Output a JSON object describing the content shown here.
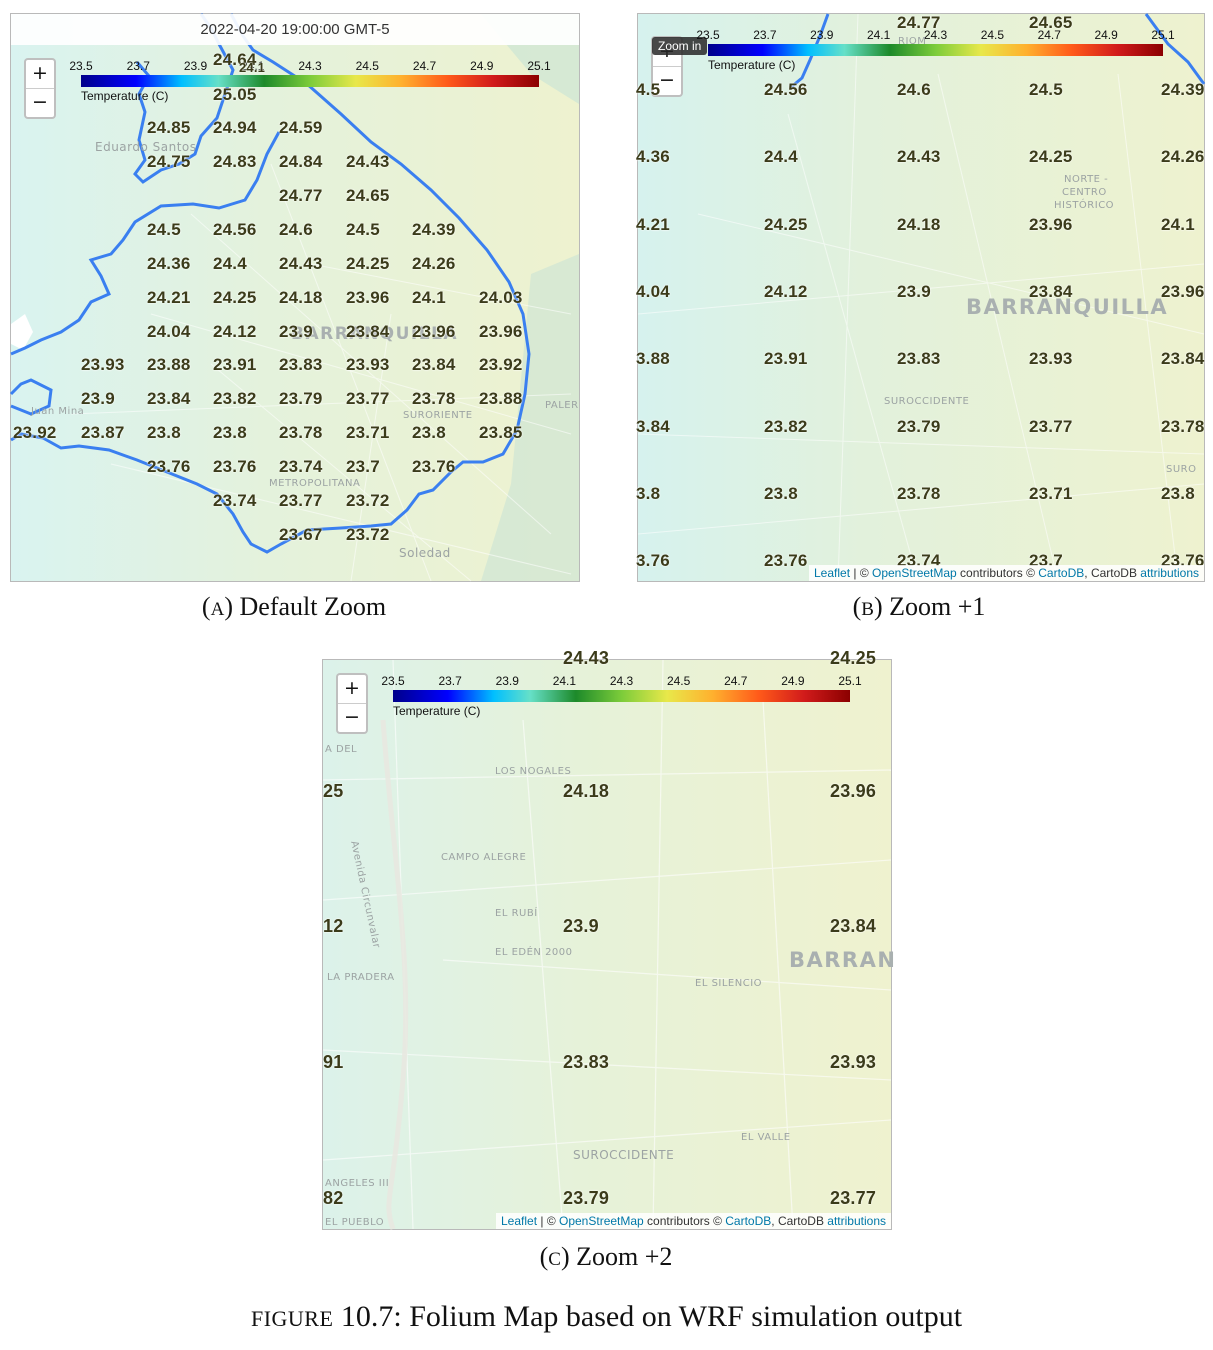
{
  "colors": {
    "boundary": "#3a7ff0",
    "label_text": "#3b3b1a",
    "map_base": "#e4f4ea",
    "attribution_link": "#0078a8"
  },
  "colorbar": {
    "ticks": [
      "23.5",
      "23.7",
      "23.9",
      "24.1",
      "24.3",
      "24.5",
      "24.7",
      "24.9",
      "25.1"
    ],
    "title": "Temperature (C)",
    "colors": [
      "#00008b",
      "#0000ff",
      "#00bfff",
      "#1d8a2a",
      "#7ccc3a",
      "#e8e84a",
      "#ffb02e",
      "#ff5a1a",
      "#8b0000"
    ]
  },
  "controls": {
    "zoom_in": "+",
    "zoom_out": "−",
    "zoom_in_tooltip": "Zoom in"
  },
  "attribution": {
    "leaflet": "Leaflet",
    "sep": " | © ",
    "osm": "OpenStreetMap",
    "contributors": " contributors © ",
    "cartodb": "CartoDB",
    "comma": ", CartoDB ",
    "attributions": "attributions"
  },
  "panel_a": {
    "timestamp": "2022-04-20 19:00:00 GMT-5",
    "caption_letter": "A",
    "caption_text": "Default Zoom",
    "places": [
      "Eduardo Santos",
      "Juan Mina",
      "METROPOLITANA",
      "SURORIENTE",
      "BARRANQUILLA",
      "PALER",
      "Soledad"
    ],
    "rows": [
      [
        "24.64",
        "24.1"
      ],
      [
        "25.05"
      ],
      [
        "24.85",
        "24.94",
        "24.59"
      ],
      [
        "24.75",
        "24.83",
        "24.84",
        "24.43"
      ],
      [
        "24.77",
        "24.65"
      ],
      [
        "24.5",
        "24.56",
        "24.6",
        "24.5",
        "24.39"
      ],
      [
        "24.36",
        "24.4",
        "24.43",
        "24.25",
        "24.26"
      ],
      [
        "24.21",
        "24.25",
        "24.18",
        "23.96",
        "24.1",
        "24.03"
      ],
      [
        "24.04",
        "24.12",
        "23.9",
        "23.84",
        "23.96",
        "23.96"
      ],
      [
        "23.93",
        "23.88",
        "23.91",
        "23.83",
        "23.93",
        "23.84",
        "23.92"
      ],
      [
        "23.9",
        "23.84",
        "23.82",
        "23.79",
        "23.77",
        "23.78",
        "23.88"
      ],
      [
        "23.92",
        "23.87",
        "23.8",
        "23.8",
        "23.78",
        "23.71",
        "23.8",
        "23.85"
      ],
      [
        "23.76",
        "23.76",
        "23.74",
        "23.7",
        "23.76"
      ],
      [
        "23.74",
        "23.77",
        "23.72"
      ],
      [
        "23.67",
        "23.72"
      ]
    ]
  },
  "panel_b": {
    "caption_letter": "B",
    "caption_text": "Zoom +1",
    "places": [
      "NORTE -",
      "CENTRO",
      "HISTÓRICO",
      "BARRANQUILLA",
      "SUROCCIDENTE",
      "SURO",
      "RIOM"
    ],
    "rows": [
      [
        "24.77",
        "24.65"
      ],
      [
        "4.5",
        "24.56",
        "24.6",
        "24.5",
        "24.39"
      ],
      [
        "4.36",
        "24.4",
        "24.43",
        "24.25",
        "24.26"
      ],
      [
        "4.21",
        "24.25",
        "24.18",
        "23.96",
        "24.1"
      ],
      [
        "4.04",
        "24.12",
        "23.9",
        "23.84",
        "23.96"
      ],
      [
        "3.88",
        "23.91",
        "23.83",
        "23.93",
        "23.84"
      ],
      [
        "3.84",
        "23.82",
        "23.79",
        "23.77",
        "23.78"
      ],
      [
        "3.8",
        "23.8",
        "23.78",
        "23.71",
        "23.8"
      ],
      [
        "3.76",
        "23.76",
        "23.74",
        "23.7",
        "23.76"
      ]
    ]
  },
  "panel_c": {
    "caption_letter": "C",
    "caption_text": "Zoom +2",
    "places": [
      "A DEL",
      "LOS NOGALES",
      "CAMPO ALEGRE",
      "EL RUBÍ",
      "EL EDÉN 2000",
      "LA PRADERA",
      "EL SILENCIO",
      "BARRAN",
      "EL VALLE",
      "SUROCCIDENTE",
      "ANGELES III",
      "EL PUEBLO",
      "Avenida Circunvalar"
    ],
    "rows": [
      [
        "24.43",
        "24.25"
      ],
      [
        "25",
        "24.18",
        "23.96"
      ],
      [
        "12",
        "23.9",
        "23.84"
      ],
      [
        "91",
        "23.83",
        "23.93"
      ],
      [
        "82",
        "23.79",
        "23.77"
      ]
    ]
  },
  "figure_caption": {
    "prefix": "FIGURE",
    "text": " 10.7: Folium Map based on WRF simulation output"
  }
}
